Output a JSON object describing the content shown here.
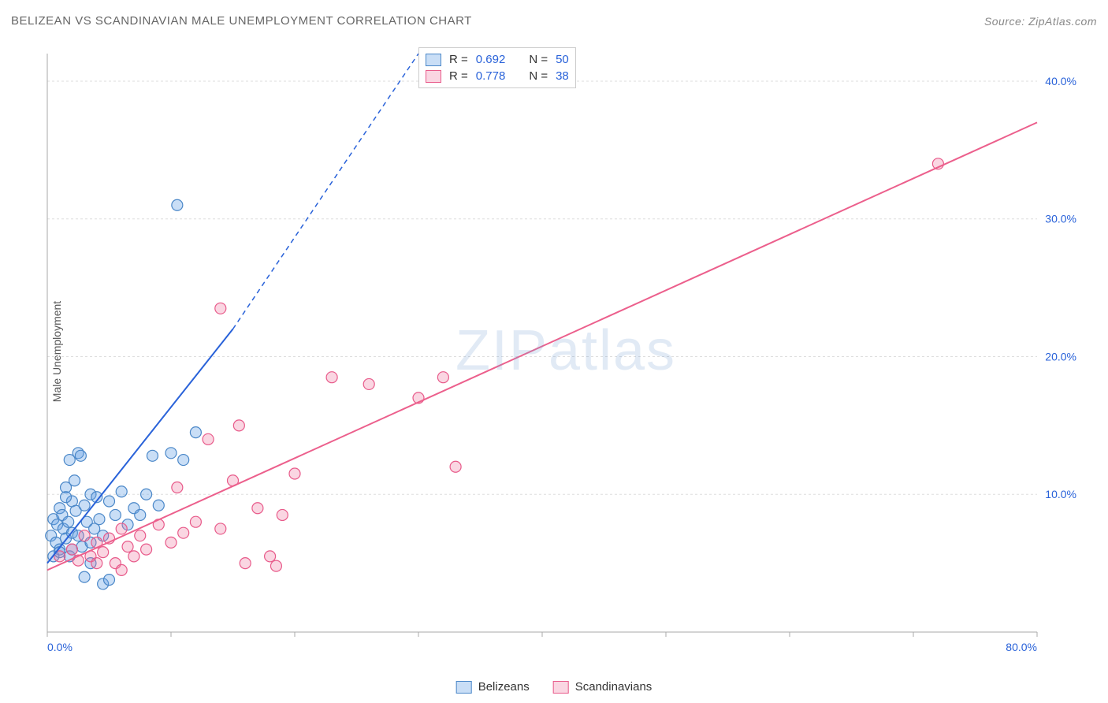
{
  "chart": {
    "type": "scatter",
    "title": "BELIZEAN VS SCANDINAVIAN MALE UNEMPLOYMENT CORRELATION CHART",
    "source_label": "Source: ZipAtlas.com",
    "y_axis_label": "Male Unemployment",
    "watermark": "ZIPatlas",
    "background_color": "#ffffff",
    "grid_color": "#dddddd",
    "axis_color": "#aaaaaa",
    "tick_label_color": "#2962d9",
    "xlim": [
      0,
      80
    ],
    "ylim": [
      0,
      42
    ],
    "x_ticks": [
      0,
      10,
      20,
      30,
      40,
      50,
      60,
      70,
      80
    ],
    "x_tick_labels_shown": {
      "0": "0.0%",
      "80": "80.0%"
    },
    "y_ticks": [
      10,
      20,
      30,
      40
    ],
    "y_tick_labels": [
      "10.0%",
      "20.0%",
      "30.0%",
      "40.0%"
    ],
    "marker_radius": 7,
    "marker_stroke_width": 1.2,
    "trend_line_width": 2,
    "series": [
      {
        "key": "belizeans",
        "label": "Belizeans",
        "fill_color": "rgba(100,160,230,0.35)",
        "stroke_color": "#4a87c8",
        "trend_color": "#2962d9",
        "R": "0.692",
        "N": "50",
        "trend": {
          "x1": 0,
          "y1": 5.0,
          "x2": 15,
          "y2": 22.0,
          "dash_to_x": 30,
          "dash_to_y": 42
        },
        "points": [
          [
            0.3,
            7.0
          ],
          [
            0.5,
            8.2
          ],
          [
            0.7,
            6.5
          ],
          [
            0.8,
            7.8
          ],
          [
            1.0,
            9.0
          ],
          [
            1.0,
            6.0
          ],
          [
            1.2,
            8.5
          ],
          [
            1.3,
            7.5
          ],
          [
            1.5,
            10.5
          ],
          [
            1.5,
            6.8
          ],
          [
            1.7,
            8.0
          ],
          [
            1.8,
            12.5
          ],
          [
            1.8,
            5.5
          ],
          [
            2.0,
            9.5
          ],
          [
            2.0,
            7.2
          ],
          [
            2.2,
            11.0
          ],
          [
            2.3,
            8.8
          ],
          [
            2.5,
            13.0
          ],
          [
            2.5,
            7.0
          ],
          [
            2.7,
            12.8
          ],
          [
            2.8,
            6.2
          ],
          [
            3.0,
            9.2
          ],
          [
            3.0,
            4.0
          ],
          [
            3.2,
            8.0
          ],
          [
            3.5,
            10.0
          ],
          [
            3.5,
            6.5
          ],
          [
            3.8,
            7.5
          ],
          [
            4.0,
            9.8
          ],
          [
            4.2,
            8.2
          ],
          [
            4.5,
            7.0
          ],
          [
            4.5,
            3.5
          ],
          [
            5.0,
            9.5
          ],
          [
            5.0,
            3.8
          ],
          [
            5.5,
            8.5
          ],
          [
            6.0,
            10.2
          ],
          [
            6.5,
            7.8
          ],
          [
            7.0,
            9.0
          ],
          [
            7.5,
            8.5
          ],
          [
            8.0,
            10.0
          ],
          [
            8.5,
            12.8
          ],
          [
            9.0,
            9.2
          ],
          [
            10.0,
            13.0
          ],
          [
            11.0,
            12.5
          ],
          [
            12.0,
            14.5
          ],
          [
            0.5,
            5.5
          ],
          [
            1.0,
            5.8
          ],
          [
            1.5,
            9.8
          ],
          [
            2.0,
            6.0
          ],
          [
            3.5,
            5.0
          ],
          [
            10.5,
            31.0
          ]
        ]
      },
      {
        "key": "scandinavians",
        "label": "Scandinavians",
        "fill_color": "rgba(240,120,160,0.30)",
        "stroke_color": "#e85a8a",
        "trend_color": "#ec5f8c",
        "R": "0.778",
        "N": "38",
        "trend": {
          "x1": 0,
          "y1": 4.5,
          "x2": 80,
          "y2": 37.0
        },
        "points": [
          [
            1.0,
            5.5
          ],
          [
            2.0,
            6.0
          ],
          [
            2.5,
            5.2
          ],
          [
            3.0,
            7.0
          ],
          [
            3.5,
            5.5
          ],
          [
            4.0,
            6.5
          ],
          [
            4.5,
            5.8
          ],
          [
            5.0,
            6.8
          ],
          [
            5.5,
            5.0
          ],
          [
            6.0,
            7.5
          ],
          [
            6.5,
            6.2
          ],
          [
            7.0,
            5.5
          ],
          [
            7.5,
            7.0
          ],
          [
            8.0,
            6.0
          ],
          [
            9.0,
            7.8
          ],
          [
            10.0,
            6.5
          ],
          [
            10.5,
            10.5
          ],
          [
            11.0,
            7.2
          ],
          [
            12.0,
            8.0
          ],
          [
            13.0,
            14.0
          ],
          [
            14.0,
            7.5
          ],
          [
            15.0,
            11.0
          ],
          [
            15.5,
            15.0
          ],
          [
            16.0,
            5.0
          ],
          [
            17.0,
            9.0
          ],
          [
            18.0,
            5.5
          ],
          [
            18.5,
            4.8
          ],
          [
            19.0,
            8.5
          ],
          [
            20.0,
            11.5
          ],
          [
            14.0,
            23.5
          ],
          [
            23.0,
            18.5
          ],
          [
            26.0,
            18.0
          ],
          [
            30.0,
            17.0
          ],
          [
            32.0,
            18.5
          ],
          [
            33.0,
            12.0
          ],
          [
            72.0,
            34.0
          ],
          [
            4.0,
            5.0
          ],
          [
            6.0,
            4.5
          ]
        ]
      }
    ],
    "stats_box": {
      "rows": [
        {
          "series_key": "belizeans",
          "r_label": "R =",
          "n_label": "N ="
        },
        {
          "series_key": "scandinavians",
          "r_label": "R =",
          "n_label": "N ="
        }
      ]
    },
    "bottom_legend": [
      {
        "series_key": "belizeans"
      },
      {
        "series_key": "scandinavians"
      }
    ]
  }
}
